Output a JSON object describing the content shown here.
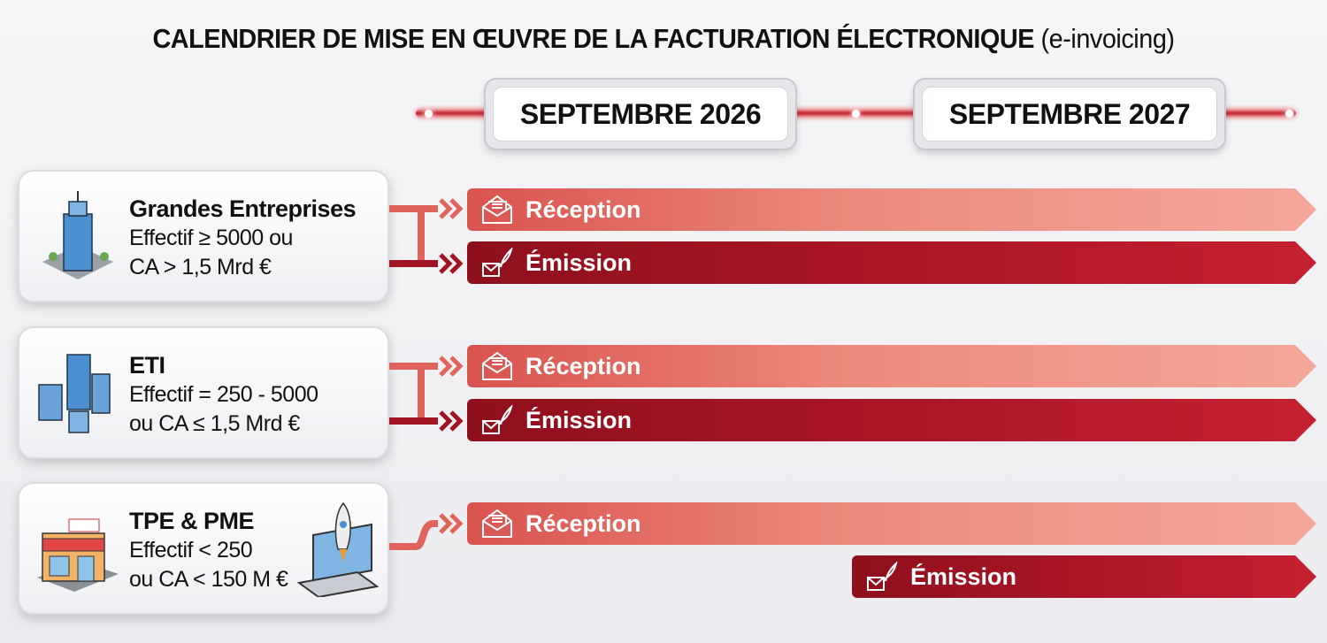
{
  "title": {
    "main": "CALENDRIER DE MISE EN ŒUVRE DE LA FACTURATION ÉLECTRONIQUE",
    "sub": "(e-invoicing)"
  },
  "timeline": {
    "dates": [
      "SEPTEMBRE 2026",
      "SEPTEMBRE 2027"
    ]
  },
  "colors": {
    "reception": "#e0635c",
    "emission": "#a01424",
    "accent": "#c0202c"
  },
  "groups": [
    {
      "name": "Grandes Entreprises",
      "line1": "Effectif ≥ 5000 ou",
      "line2": "CA > 1,5 Mrd €",
      "icon": "skyscraper-icon",
      "reception": "Réception",
      "emission": "Émission",
      "reception_start": "SEPTEMBRE 2026",
      "emission_start": "SEPTEMBRE 2026"
    },
    {
      "name": "ETI",
      "line1": "Effectif = 250 - 5000",
      "line2": "ou CA ≤ 1,5 Mrd €",
      "icon": "buildings-icon",
      "reception": "Réception",
      "emission": "Émission",
      "reception_start": "SEPTEMBRE 2026",
      "emission_start": "SEPTEMBRE 2026"
    },
    {
      "name": "TPE & PME",
      "line1": "Effectif < 250",
      "line2": "ou CA < 150 M €",
      "icon": "shop-icon",
      "reception": "Réception",
      "emission": "Émission",
      "reception_start": "SEPTEMBRE 2026",
      "emission_start": "SEPTEMBRE 2027"
    }
  ]
}
